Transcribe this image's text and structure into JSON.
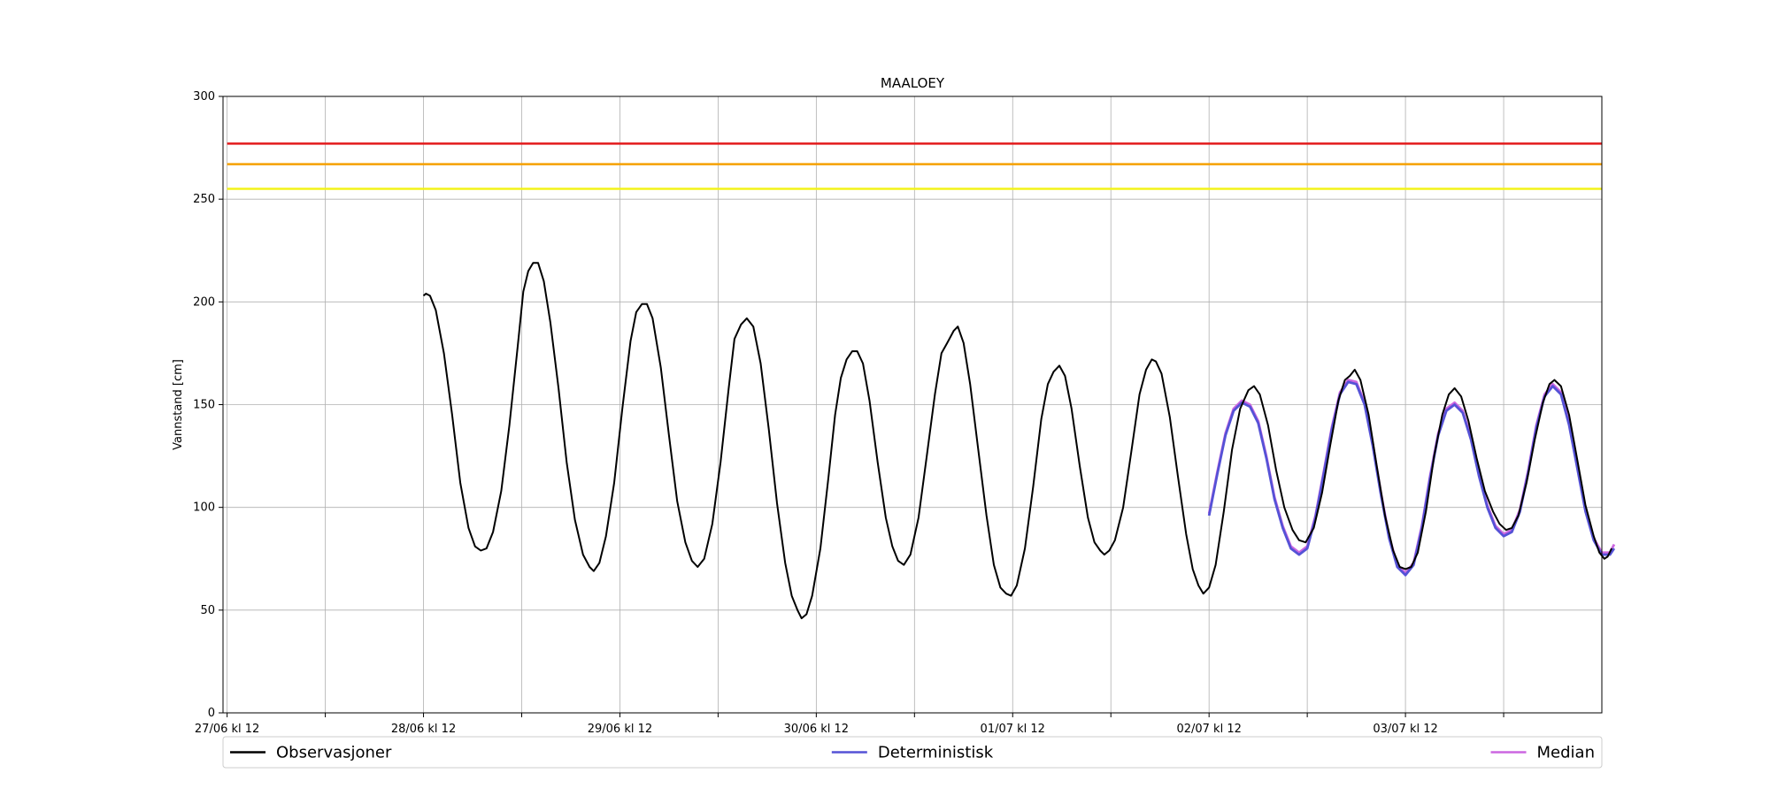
{
  "chart_data": {
    "type": "line",
    "title": "MAALOEY",
    "xlabel": "",
    "ylabel": "Vannstand [cm]",
    "x_axis_unit": "hours since 27/06 kl 12",
    "xlim": [
      -0.5,
      168
    ],
    "ylim": [
      0,
      300
    ],
    "yticks": [
      0,
      50,
      100,
      150,
      200,
      250,
      300
    ],
    "xticks": [
      {
        "x": 0,
        "label": "27/06 kl 12"
      },
      {
        "x": 12,
        "label": ""
      },
      {
        "x": 24,
        "label": "28/06 kl 12"
      },
      {
        "x": 36,
        "label": ""
      },
      {
        "x": 48,
        "label": "29/06 kl 12"
      },
      {
        "x": 60,
        "label": ""
      },
      {
        "x": 72,
        "label": "30/06 kl 12"
      },
      {
        "x": 84,
        "label": ""
      },
      {
        "x": 96,
        "label": "01/07 kl 12"
      },
      {
        "x": 108,
        "label": ""
      },
      {
        "x": 120,
        "label": "02/07 kl 12"
      },
      {
        "x": 132,
        "label": ""
      },
      {
        "x": 144,
        "label": "03/07 kl 12"
      },
      {
        "x": 156,
        "label": ""
      }
    ],
    "grid": true,
    "legend_position": "bottom",
    "thresholds": [
      {
        "value": 277,
        "color": "#e31a1c"
      },
      {
        "value": 267,
        "color": "#f5a100"
      },
      {
        "value": 255,
        "color": "#f3f31a"
      }
    ],
    "series": [
      {
        "name": "Observasjoner",
        "color": "#000000",
        "points": [
          [
            24,
            203
          ],
          [
            24.3,
            204
          ],
          [
            24.8,
            203
          ],
          [
            25.5,
            196
          ],
          [
            26.5,
            175
          ],
          [
            27.5,
            145
          ],
          [
            28.5,
            112
          ],
          [
            29.5,
            90
          ],
          [
            30.3,
            81
          ],
          [
            31.0,
            79
          ],
          [
            31.7,
            80
          ],
          [
            32.5,
            88
          ],
          [
            33.5,
            108
          ],
          [
            34.5,
            140
          ],
          [
            35.5,
            178
          ],
          [
            36.2,
            205
          ],
          [
            36.8,
            215
          ],
          [
            37.4,
            219
          ],
          [
            38.0,
            219
          ],
          [
            38.7,
            210
          ],
          [
            39.5,
            190
          ],
          [
            40.5,
            158
          ],
          [
            41.5,
            122
          ],
          [
            42.5,
            94
          ],
          [
            43.5,
            77
          ],
          [
            44.3,
            71
          ],
          [
            44.8,
            69
          ],
          [
            45.5,
            73
          ],
          [
            46.3,
            86
          ],
          [
            47.3,
            112
          ],
          [
            48.3,
            148
          ],
          [
            49.3,
            181
          ],
          [
            50.0,
            195
          ],
          [
            50.7,
            199
          ],
          [
            51.3,
            199
          ],
          [
            52.0,
            192
          ],
          [
            53.0,
            168
          ],
          [
            54.0,
            135
          ],
          [
            55.0,
            103
          ],
          [
            56.0,
            83
          ],
          [
            56.8,
            74
          ],
          [
            57.5,
            71
          ],
          [
            58.3,
            75
          ],
          [
            59.3,
            92
          ],
          [
            60.3,
            122
          ],
          [
            61.3,
            158
          ],
          [
            62.0,
            182
          ],
          [
            62.8,
            189
          ],
          [
            63.5,
            192
          ],
          [
            64.3,
            188
          ],
          [
            65.2,
            170
          ],
          [
            66.2,
            138
          ],
          [
            67.2,
            102
          ],
          [
            68.2,
            73
          ],
          [
            69.0,
            57
          ],
          [
            69.7,
            50
          ],
          [
            70.2,
            46
          ],
          [
            70.8,
            48
          ],
          [
            71.5,
            57
          ],
          [
            72.5,
            80
          ],
          [
            73.5,
            115
          ],
          [
            74.3,
            145
          ],
          [
            75.0,
            163
          ],
          [
            75.7,
            172
          ],
          [
            76.4,
            176
          ],
          [
            77.0,
            176
          ],
          [
            77.7,
            170
          ],
          [
            78.5,
            152
          ],
          [
            79.5,
            122
          ],
          [
            80.5,
            95
          ],
          [
            81.3,
            81
          ],
          [
            82.0,
            74
          ],
          [
            82.7,
            72
          ],
          [
            83.5,
            77
          ],
          [
            84.5,
            95
          ],
          [
            85.5,
            125
          ],
          [
            86.5,
            155
          ],
          [
            87.3,
            175
          ],
          [
            88.0,
            180
          ],
          [
            88.8,
            186
          ],
          [
            89.3,
            188
          ],
          [
            90.0,
            180
          ],
          [
            90.8,
            160
          ],
          [
            91.8,
            128
          ],
          [
            92.8,
            96
          ],
          [
            93.7,
            72
          ],
          [
            94.5,
            61
          ],
          [
            95.2,
            58
          ],
          [
            95.8,
            57
          ],
          [
            96.5,
            62
          ],
          [
            97.5,
            80
          ],
          [
            98.5,
            110
          ],
          [
            99.5,
            143
          ],
          [
            100.3,
            160
          ],
          [
            101.0,
            166
          ],
          [
            101.7,
            169
          ],
          [
            102.4,
            164
          ],
          [
            103.2,
            148
          ],
          [
            104.2,
            120
          ],
          [
            105.2,
            95
          ],
          [
            106.0,
            83
          ],
          [
            106.7,
            79
          ],
          [
            107.2,
            77
          ],
          [
            107.8,
            79
          ],
          [
            108.5,
            84
          ],
          [
            109.5,
            100
          ],
          [
            110.5,
            127
          ],
          [
            111.5,
            155
          ],
          [
            112.3,
            167
          ],
          [
            113.0,
            172
          ],
          [
            113.5,
            171
          ],
          [
            114.2,
            165
          ],
          [
            115.2,
            144
          ],
          [
            116.2,
            115
          ],
          [
            117.2,
            87
          ],
          [
            118.0,
            70
          ],
          [
            118.7,
            62
          ],
          [
            119.3,
            58
          ],
          [
            120.0,
            61
          ],
          [
            120.8,
            72
          ],
          [
            121.8,
            98
          ],
          [
            122.8,
            128
          ],
          [
            123.8,
            148
          ],
          [
            124.8,
            157
          ],
          [
            125.5,
            159
          ],
          [
            126.2,
            155
          ],
          [
            127.2,
            140
          ],
          [
            128.2,
            118
          ],
          [
            129.2,
            100
          ],
          [
            130.2,
            89
          ],
          [
            131.0,
            84
          ],
          [
            131.8,
            83
          ],
          [
            132.8,
            90
          ],
          [
            133.8,
            107
          ],
          [
            134.8,
            130
          ],
          [
            135.8,
            152
          ],
          [
            136.6,
            162
          ],
          [
            137.2,
            164
          ],
          [
            137.8,
            167
          ],
          [
            138.5,
            162
          ],
          [
            139.5,
            145
          ],
          [
            140.5,
            120
          ],
          [
            141.5,
            96
          ],
          [
            142.5,
            79
          ],
          [
            143.3,
            71
          ],
          [
            144.0,
            70
          ],
          [
            144.7,
            71
          ],
          [
            145.5,
            78
          ],
          [
            146.5,
            98
          ],
          [
            147.5,
            125
          ],
          [
            148.5,
            145
          ],
          [
            149.3,
            155
          ],
          [
            150.0,
            158
          ],
          [
            150.8,
            154
          ],
          [
            151.7,
            142
          ],
          [
            152.7,
            124
          ],
          [
            153.7,
            108
          ],
          [
            154.7,
            98
          ],
          [
            155.5,
            92
          ],
          [
            156.3,
            89
          ],
          [
            157.0,
            90
          ],
          [
            157.8,
            96
          ],
          [
            158.8,
            112
          ],
          [
            159.8,
            133
          ],
          [
            160.8,
            151
          ],
          [
            161.6,
            160
          ],
          [
            162.2,
            162
          ],
          [
            163.0,
            159
          ],
          [
            164.0,
            145
          ],
          [
            165.0,
            123
          ],
          [
            166.0,
            101
          ],
          [
            167.0,
            86
          ],
          [
            167.7,
            78
          ],
          [
            168.3,
            75
          ],
          [
            168.7,
            76
          ],
          [
            169.2,
            80
          ]
        ]
      },
      {
        "name": "Deterministisk",
        "color": "#5552d6",
        "points": [
          [
            120,
            96
          ],
          [
            121,
            116
          ],
          [
            122,
            135
          ],
          [
            123,
            147
          ],
          [
            124,
            151
          ],
          [
            125,
            149
          ],
          [
            126,
            141
          ],
          [
            127,
            124
          ],
          [
            128,
            104
          ],
          [
            129,
            90
          ],
          [
            130,
            80
          ],
          [
            131,
            77
          ],
          [
            132,
            80
          ],
          [
            133,
            95
          ],
          [
            134,
            116
          ],
          [
            135,
            138
          ],
          [
            136,
            155
          ],
          [
            137,
            161
          ],
          [
            138,
            160
          ],
          [
            139,
            150
          ],
          [
            140,
            130
          ],
          [
            141,
            106
          ],
          [
            142,
            85
          ],
          [
            143,
            71
          ],
          [
            144,
            67
          ],
          [
            145,
            72
          ],
          [
            146,
            90
          ],
          [
            147,
            114
          ],
          [
            148,
            135
          ],
          [
            149,
            147
          ],
          [
            150,
            150
          ],
          [
            151,
            146
          ],
          [
            152,
            133
          ],
          [
            153,
            115
          ],
          [
            154,
            100
          ],
          [
            155,
            90
          ],
          [
            156,
            86
          ],
          [
            157,
            88
          ],
          [
            158,
            98
          ],
          [
            159,
            117
          ],
          [
            160,
            139
          ],
          [
            161,
            154
          ],
          [
            162,
            159
          ],
          [
            163,
            155
          ],
          [
            164,
            140
          ],
          [
            165,
            119
          ],
          [
            166,
            98
          ],
          [
            167,
            84
          ],
          [
            168,
            77
          ],
          [
            169,
            77
          ],
          [
            169.5,
            80
          ]
        ]
      },
      {
        "name": "Median",
        "color": "#cc66e0",
        "points": [
          [
            120,
            97
          ],
          [
            121,
            117
          ],
          [
            122,
            136
          ],
          [
            123,
            148
          ],
          [
            124,
            152
          ],
          [
            125,
            150
          ],
          [
            126,
            142
          ],
          [
            127,
            125
          ],
          [
            128,
            105
          ],
          [
            129,
            91
          ],
          [
            130,
            81
          ],
          [
            131,
            78
          ],
          [
            132,
            81
          ],
          [
            133,
            96
          ],
          [
            134,
            117
          ],
          [
            135,
            139
          ],
          [
            136,
            156
          ],
          [
            137,
            162
          ],
          [
            138,
            161
          ],
          [
            139,
            151
          ],
          [
            140,
            131
          ],
          [
            141,
            107
          ],
          [
            142,
            86
          ],
          [
            143,
            72
          ],
          [
            144,
            68
          ],
          [
            145,
            73
          ],
          [
            146,
            91
          ],
          [
            147,
            115
          ],
          [
            148,
            136
          ],
          [
            149,
            148
          ],
          [
            150,
            151
          ],
          [
            151,
            147
          ],
          [
            152,
            134
          ],
          [
            153,
            116
          ],
          [
            154,
            101
          ],
          [
            155,
            91
          ],
          [
            156,
            87
          ],
          [
            157,
            89
          ],
          [
            158,
            99
          ],
          [
            159,
            118
          ],
          [
            160,
            140
          ],
          [
            161,
            155
          ],
          [
            162,
            160
          ],
          [
            163,
            156
          ],
          [
            164,
            141
          ],
          [
            165,
            120
          ],
          [
            166,
            99
          ],
          [
            167,
            85
          ],
          [
            168,
            78
          ],
          [
            169,
            78
          ],
          [
            169.5,
            82
          ]
        ]
      }
    ]
  }
}
